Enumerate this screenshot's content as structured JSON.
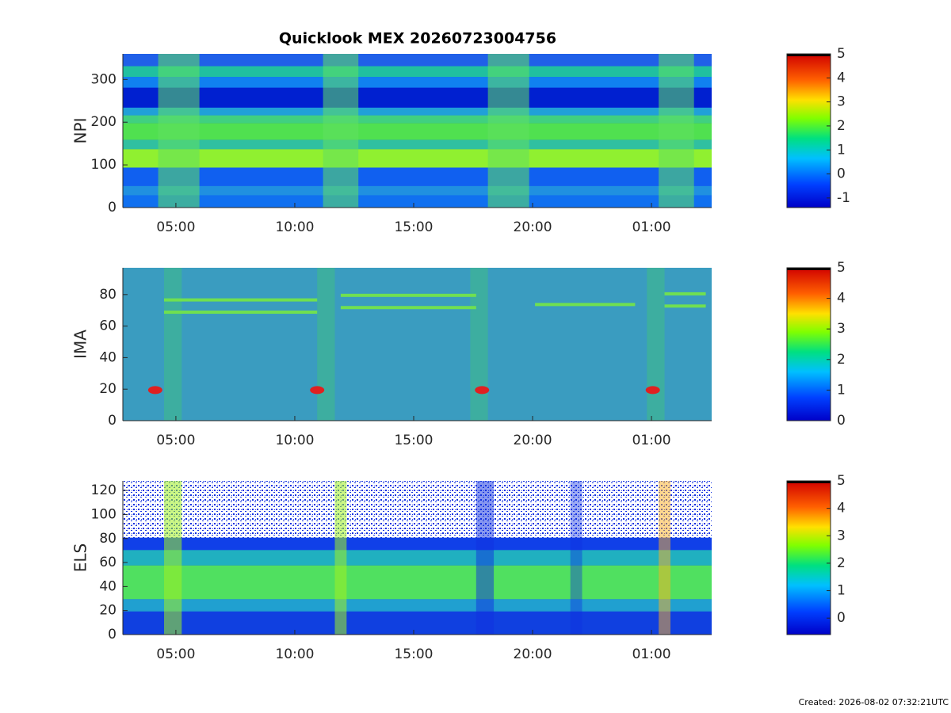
{
  "title": "Quicklook MEX 20260723004756",
  "footer": "Created: 2026-08-02 07:32:21UTC",
  "chart_data": [
    {
      "type": "heatmap",
      "y_label": "NPI",
      "xlim": [
        2.77,
        27.53
      ],
      "xticks": [
        {
          "value": 5,
          "label": "05:00"
        },
        {
          "value": 10,
          "label": "10:00"
        },
        {
          "value": 15,
          "label": "15:00"
        },
        {
          "value": 20,
          "label": "20:00"
        },
        {
          "value": 25,
          "label": "01:00"
        }
      ],
      "ylim": [
        0,
        360
      ],
      "yticks": [
        0,
        100,
        200,
        300
      ],
      "clim": [
        -1.4,
        5
      ],
      "cticks": [
        -1,
        0,
        1,
        2,
        3,
        4,
        5
      ]
    },
    {
      "type": "heatmap",
      "y_label": "IMA",
      "xlim": [
        2.77,
        27.53
      ],
      "xticks": [
        {
          "value": 5,
          "label": "05:00"
        },
        {
          "value": 10,
          "label": "10:00"
        },
        {
          "value": 15,
          "label": "15:00"
        },
        {
          "value": 20,
          "label": "20:00"
        },
        {
          "value": 25,
          "label": "01:00"
        }
      ],
      "ylim": [
        0,
        97
      ],
      "yticks": [
        0,
        20,
        40,
        60,
        80
      ],
      "clim": [
        0,
        5
      ],
      "cticks": [
        0,
        1,
        2,
        3,
        4,
        5
      ]
    },
    {
      "type": "heatmap",
      "y_label": "ELS",
      "xlim": [
        2.77,
        27.53
      ],
      "xticks": [
        {
          "value": 5,
          "label": "05:00"
        },
        {
          "value": 10,
          "label": "10:00"
        },
        {
          "value": 15,
          "label": "15:00"
        },
        {
          "value": 20,
          "label": "20:00"
        },
        {
          "value": 25,
          "label": "01:00"
        }
      ],
      "ylim": [
        0,
        128
      ],
      "yticks": [
        0,
        20,
        40,
        60,
        80,
        100,
        120
      ],
      "clim": [
        -0.6,
        5
      ],
      "cticks": [
        0,
        1,
        2,
        3,
        4,
        5
      ]
    }
  ]
}
